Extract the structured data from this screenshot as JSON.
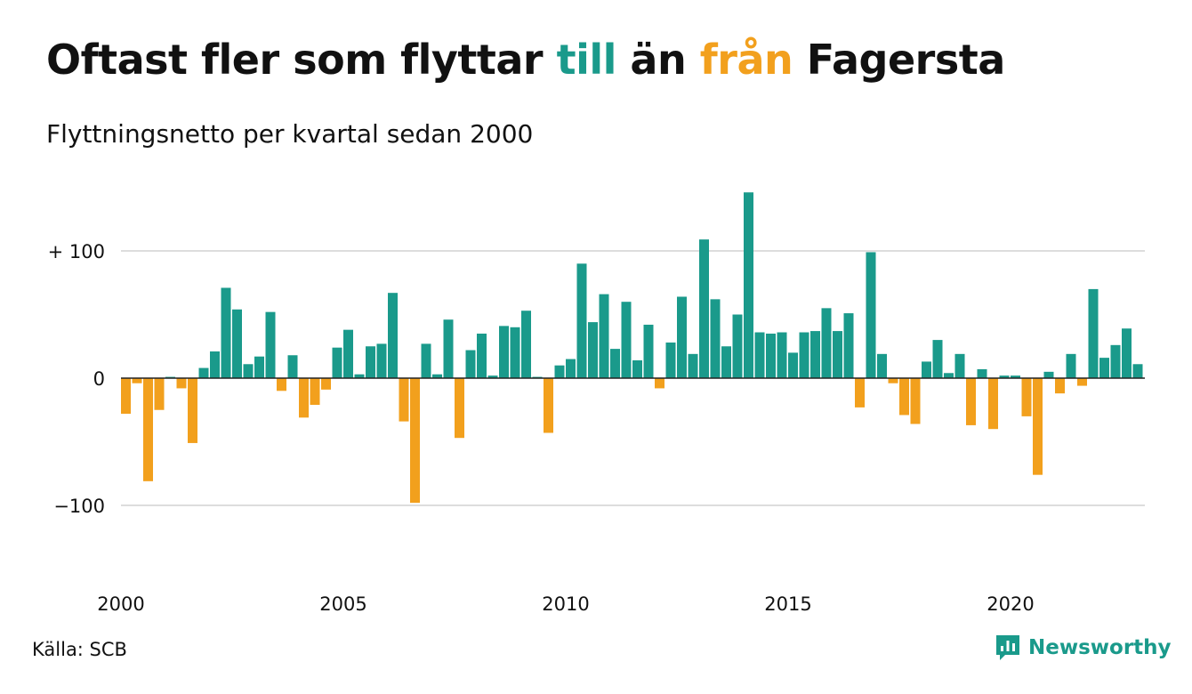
{
  "title": {
    "part1": "Oftast fler som flyttar ",
    "pos_word": "till",
    "part2": " än ",
    "neg_word": "från",
    "part3": " Fagersta"
  },
  "subtitle": "Flyttningsnetto per kvartal sedan 2000",
  "source": "Källa: SCB",
  "brand": "Newsworthy",
  "colors": {
    "positive": "#1a9a8b",
    "negative": "#f2a01d",
    "grid": "#dddddd",
    "axis": "#222222"
  },
  "chart_data": {
    "type": "bar",
    "xlabel": "",
    "ylabel": "",
    "x_start_year": 2000,
    "values_per_year": 4,
    "ylim": [
      -140,
      145
    ],
    "y_ticks": [
      {
        "value": 100,
        "label": "+ 100"
      },
      {
        "value": 0,
        "label": "0"
      },
      {
        "value": -100,
        "label": "−100"
      }
    ],
    "x_ticks": [
      {
        "year": 2000,
        "label": "2000"
      },
      {
        "year": 2005,
        "label": "2005"
      },
      {
        "year": 2010,
        "label": "2010"
      },
      {
        "year": 2015,
        "label": "2015"
      },
      {
        "year": 2020,
        "label": "2020"
      }
    ],
    "grid": true,
    "values": [
      -28,
      -4,
      -81,
      -25,
      1,
      -8,
      -51,
      8,
      21,
      71,
      54,
      11,
      17,
      52,
      -10,
      18,
      -31,
      -21,
      -9,
      24,
      38,
      3,
      25,
      27,
      67,
      -34,
      -98,
      27,
      3,
      46,
      -47,
      22,
      35,
      2,
      41,
      40,
      53,
      1,
      -43,
      10,
      15,
      90,
      44,
      66,
      23,
      60,
      14,
      42,
      -8,
      28,
      64,
      19,
      109,
      62,
      25,
      50,
      146,
      36,
      35,
      36,
      20,
      36,
      37,
      55,
      37,
      51,
      -23,
      99,
      19,
      -4,
      -29,
      -36,
      13,
      30,
      4,
      19,
      -37,
      7,
      -40,
      2,
      2,
      -30,
      -76,
      5,
      -12,
      19,
      -6,
      70,
      16,
      26,
      39,
      11
    ]
  }
}
